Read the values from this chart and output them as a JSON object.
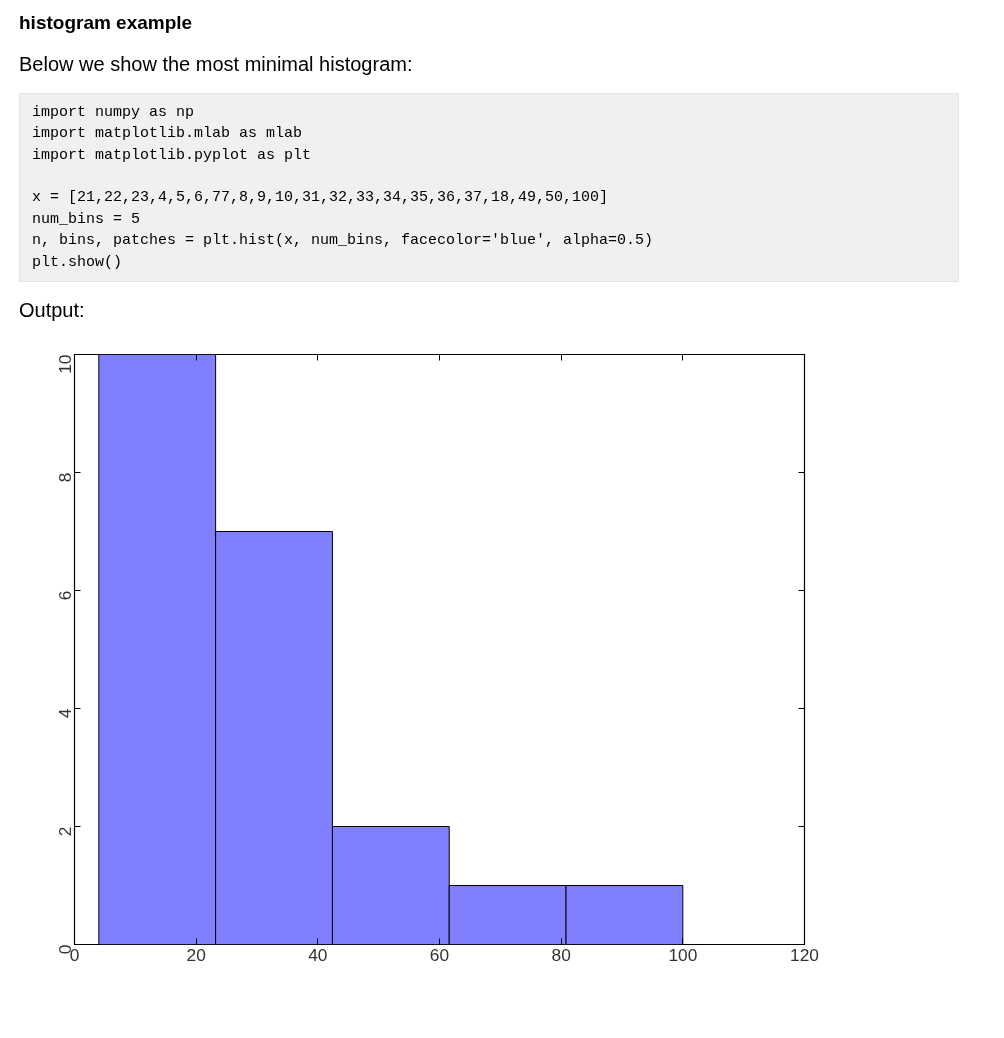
{
  "chart_data": {
    "type": "histogram",
    "title": "histogram example",
    "subtitle": "Below we show the most minimal histogram:",
    "annotations": [
      "import numpy as np\nimport matplotlib.mlab as mlab\nimport matplotlib.pyplot as plt\n\nx = [21,22,23,4,5,6,77,8,9,10,31,32,33,34,35,36,37,18,49,50,100]\nnum_bins = 5\nn, bins, patches = plt.hist(x, num_bins, facecolor='blue', alpha=0.5)\nplt.show()",
      "Output:"
    ],
    "bins": [
      4,
      23.2,
      42.4,
      61.6,
      80.8,
      100
    ],
    "values": [
      10,
      7,
      2,
      1,
      1
    ],
    "color": "#8080ff",
    "xlim": [
      0,
      120
    ],
    "xticks": [
      0,
      20,
      40,
      60,
      80,
      100,
      120
    ],
    "ylim": [
      0,
      10
    ],
    "yticks": [
      0,
      2,
      4,
      6,
      8,
      10
    ]
  }
}
